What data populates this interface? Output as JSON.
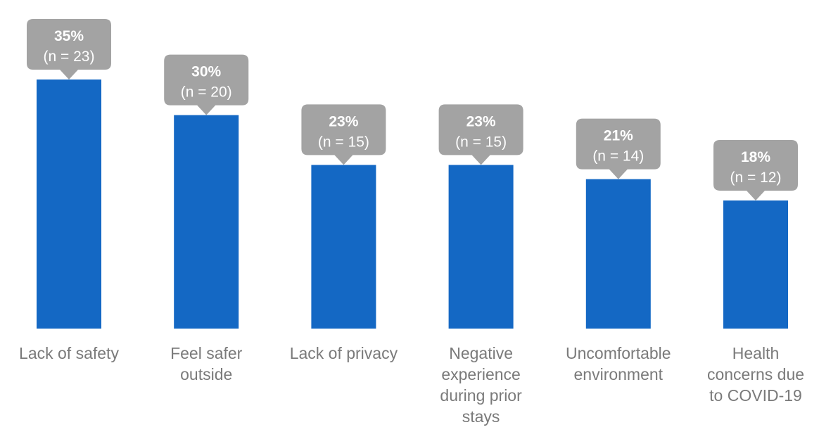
{
  "chart_data": {
    "type": "bar",
    "categories": [
      [
        "Lack of safety"
      ],
      [
        "Feel safer",
        "outside"
      ],
      [
        "Lack of privacy"
      ],
      [
        "Negative",
        "experience",
        "during prior",
        "stays"
      ],
      [
        "Uncomfortable",
        "environment"
      ],
      [
        "Health",
        "concerns due",
        "to COVID-19"
      ]
    ],
    "values": [
      35,
      30,
      23,
      23,
      21,
      18
    ],
    "data_labels": [
      {
        "percent": "35%",
        "count": "(n = 23)"
      },
      {
        "percent": "30%",
        "count": "(n = 20)"
      },
      {
        "percent": "23%",
        "count": "(n = 15)"
      },
      {
        "percent": "23%",
        "count": "(n = 15)"
      },
      {
        "percent": "21%",
        "count": "(n = 14)"
      },
      {
        "percent": "18%",
        "count": "(n = 12)"
      }
    ],
    "title": "",
    "xlabel": "",
    "ylabel": "",
    "ylim": [
      0,
      40
    ],
    "grid": false,
    "legend": "none",
    "colors": {
      "bar": "#1468c4",
      "callout": "#a3a3a3",
      "callout_text": "#ffffff",
      "label_text": "#7a7a7a"
    }
  }
}
